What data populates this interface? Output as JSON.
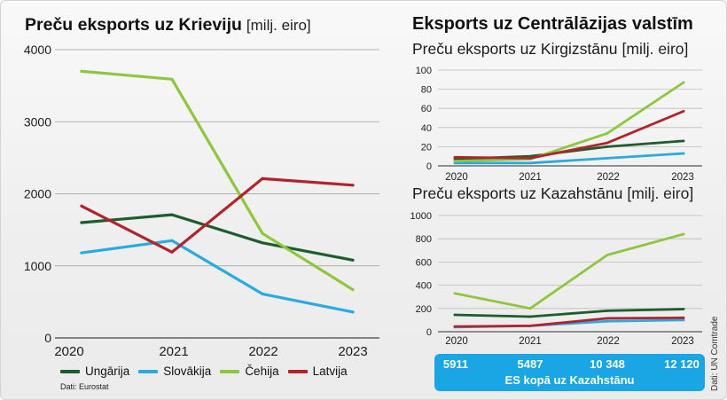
{
  "chart_data": [
    {
      "type": "line",
      "title": "Preču eksports uz Krieviju",
      "unit": "[milj. eiro]",
      "categories": [
        "2020",
        "2021",
        "2022",
        "2023"
      ],
      "ylim": [
        0,
        4000
      ],
      "yticks": [
        0,
        1000,
        2000,
        3000,
        4000
      ],
      "grid": true,
      "legend": "bottom-left",
      "series": [
        {
          "name": "Ungārija",
          "color": "#1d5c2c",
          "values": [
            1600,
            1710,
            1320,
            1080
          ]
        },
        {
          "name": "Slovākija",
          "color": "#29abe2",
          "values": [
            1180,
            1350,
            610,
            360
          ]
        },
        {
          "name": "Čehija",
          "color": "#8dc63f",
          "values": [
            3700,
            3590,
            1450,
            670
          ]
        },
        {
          "name": "Latvija",
          "color": "#b2242c",
          "values": [
            1830,
            1190,
            2210,
            2120
          ]
        }
      ]
    },
    {
      "type": "line",
      "title": "Preču eksports uz Kirgizstānu",
      "unit": "[milj. eiro]",
      "categories": [
        "2020",
        "2021",
        "2022",
        "2023"
      ],
      "ylim": [
        0,
        100
      ],
      "yticks": [
        0,
        20,
        40,
        60,
        80,
        100
      ],
      "grid": true,
      "series": [
        {
          "name": "Ungārija",
          "color": "#1d5c2c",
          "values": [
            7,
            10,
            20,
            26
          ]
        },
        {
          "name": "Slovākija",
          "color": "#29abe2",
          "values": [
            3,
            3,
            8,
            13
          ]
        },
        {
          "name": "Čehija",
          "color": "#8dc63f",
          "values": [
            5,
            7,
            34,
            87
          ]
        },
        {
          "name": "Latvija",
          "color": "#b2242c",
          "values": [
            9,
            8,
            24,
            57
          ]
        }
      ]
    },
    {
      "type": "line",
      "title": "Preču eksports uz Kazahstānu",
      "unit": "[milj. eiro]",
      "categories": [
        "2020",
        "2021",
        "2022",
        "2023"
      ],
      "ylim": [
        0,
        1000
      ],
      "yticks": [
        0,
        200,
        400,
        600,
        800,
        1000
      ],
      "grid": true,
      "series": [
        {
          "name": "Ungārija",
          "color": "#1d5c2c",
          "values": [
            145,
            130,
            180,
            195
          ]
        },
        {
          "name": "Slovākija",
          "color": "#29abe2",
          "values": [
            40,
            50,
            90,
            100
          ]
        },
        {
          "name": "Čehija",
          "color": "#8dc63f",
          "values": [
            330,
            200,
            660,
            840
          ]
        },
        {
          "name": "Latvija",
          "color": "#b2242c",
          "values": [
            45,
            50,
            115,
            120
          ]
        }
      ]
    }
  ],
  "heading_central_asia": "Eksports uz Centrālāzijas valstīm",
  "kazakhstan_totals": {
    "values": [
      "5911",
      "5487",
      "10 348",
      "12 120"
    ],
    "label": "ES kopā uz Kazahstānu",
    "color": "#1aa5e5"
  },
  "sources": {
    "eurostat": "Dati: Eurostat",
    "comtrade": "Dati: UN Comtrade"
  }
}
